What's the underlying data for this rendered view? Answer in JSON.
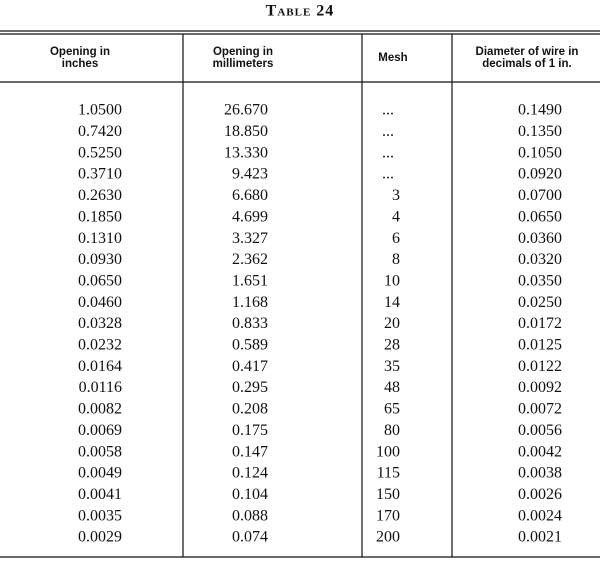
{
  "title": "Table 24",
  "table": {
    "headers": [
      [
        "Opening in",
        "inches"
      ],
      [
        "Opening in",
        "millimeters"
      ],
      [
        "Mesh"
      ],
      [
        "Diameter of wire in",
        "decimals of 1 in."
      ]
    ],
    "rows": [
      [
        "1.0500",
        "26.670",
        "...",
        "0.1490"
      ],
      [
        "0.7420",
        "18.850",
        "...",
        "0.1350"
      ],
      [
        "0.5250",
        "13.330",
        "...",
        "0.1050"
      ],
      [
        "0.3710",
        "9.423",
        "...",
        "0.0920"
      ],
      [
        "0.2630",
        "6.680",
        "3",
        "0.0700"
      ],
      [
        "0.1850",
        "4.699",
        "4",
        "0.0650"
      ],
      [
        "0.1310",
        "3.327",
        "6",
        "0.0360"
      ],
      [
        "0.0930",
        "2.362",
        "8",
        "0.0320"
      ],
      [
        "0.0650",
        "1.651",
        "10",
        "0.0350"
      ],
      [
        "0.0460",
        "1.168",
        "14",
        "0.0250"
      ],
      [
        "0.0328",
        "0.833",
        "20",
        "0.0172"
      ],
      [
        "0.0232",
        "0.589",
        "28",
        "0.0125"
      ],
      [
        "0.0164",
        "0.417",
        "35",
        "0.0122"
      ],
      [
        "0.0116",
        "0.295",
        "48",
        "0.0092"
      ],
      [
        "0.0082",
        "0.208",
        "65",
        "0.0072"
      ],
      [
        "0.0069",
        "0.175",
        "80",
        "0.0056"
      ],
      [
        "0.0058",
        "0.147",
        "100",
        "0.0042"
      ],
      [
        "0.0049",
        "0.124",
        "115",
        "0.0038"
      ],
      [
        "0.0041",
        "0.104",
        "150",
        "0.0026"
      ],
      [
        "0.0035",
        "0.088",
        "170",
        "0.0024"
      ],
      [
        "0.0029",
        "0.074",
        "200",
        "0.0021"
      ]
    ]
  }
}
